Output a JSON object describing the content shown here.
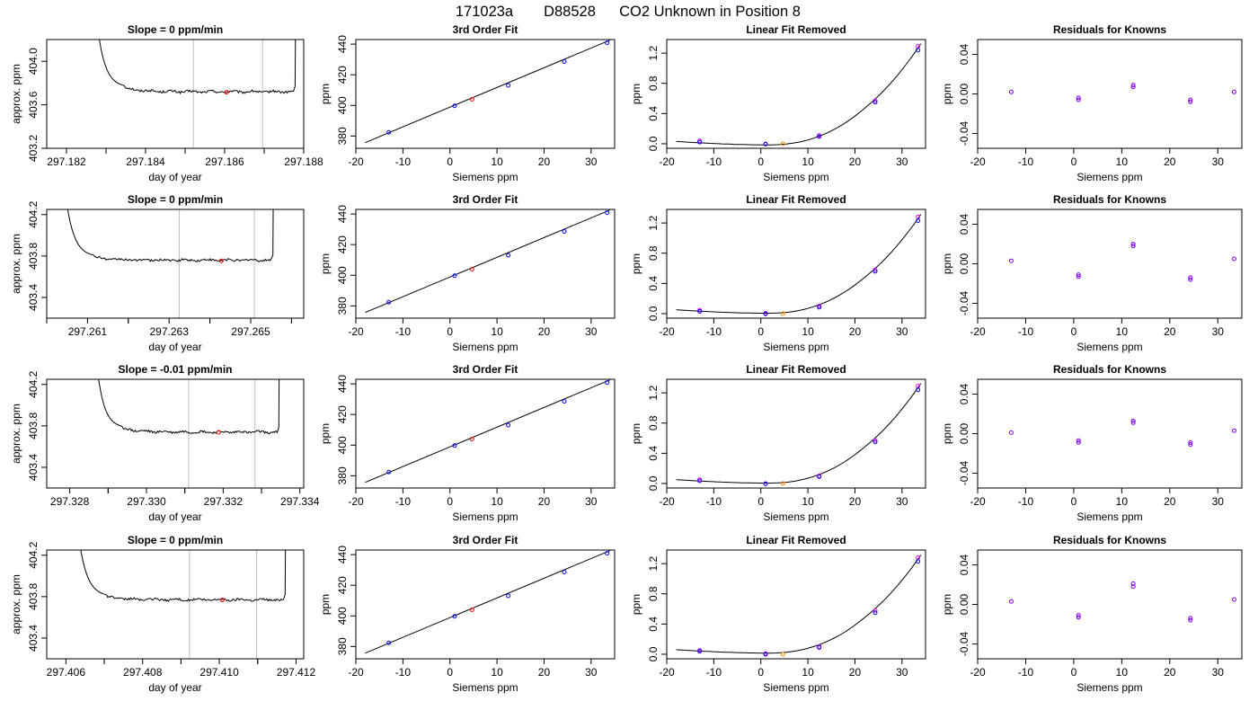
{
  "title": {
    "id": "171023a",
    "tank": "D88528",
    "description": "CO2 Unknown in Position  8"
  },
  "colors": {
    "trace": "#000000",
    "known": "#0000ff",
    "known_alt": "#ff00ff",
    "unknown_fit": "#ff0000",
    "unknown_removed": "#ff8c00",
    "residual": "#8000ff",
    "guide": "#bebebe"
  },
  "chart_data": [
    {
      "type": "line",
      "row": 0,
      "panel": "trace",
      "title": "Slope =  0  ppm/min",
      "xlabel": "day of year",
      "ylabel": "approx. ppm",
      "xlim": [
        297.1815,
        297.188
      ],
      "ylim": [
        403.2,
        404.2
      ],
      "xticks": [
        "297.182",
        "297.184",
        "297.186",
        "297.188"
      ],
      "yticks": [
        "403.2",
        "403.6",
        "404.0"
      ],
      "vlines": [
        297.18521,
        297.18696
      ],
      "marker": {
        "x": 297.18605,
        "y": 403.716
      },
      "trace": {
        "t0": 297.18346,
        "t1": 297.18774,
        "level": 403.72,
        "rise_top": 404.9,
        "settle": 403.76
      }
    },
    {
      "type": "scatter",
      "row": 0,
      "panel": "fit",
      "title": "3rd Order Fit",
      "xlabel": "Siemens ppm",
      "ylabel": "ppm",
      "xlim": [
        -20,
        35
      ],
      "ylim": [
        372,
        443
      ],
      "xticks": [
        "-20",
        "-10",
        "0",
        "10",
        "20",
        "30"
      ],
      "yticks": [
        "380",
        "400",
        "420",
        "440"
      ],
      "fit_line": [
        [
          -18,
          375.7
        ],
        [
          34,
          442.6
        ]
      ],
      "knowns": [
        [
          -13.0,
          382.4
        ],
        [
          1.0,
          399.7
        ],
        [
          12.4,
          413.1
        ],
        [
          24.3,
          428.6
        ],
        [
          33.4,
          440.9
        ]
      ],
      "unknown": [
        4.7,
        404.0
      ]
    },
    {
      "type": "scatter",
      "row": 0,
      "panel": "removed",
      "title": "Linear Fit Removed",
      "xlabel": "Siemens ppm",
      "ylabel": "ppm",
      "xlim": [
        -20,
        35
      ],
      "ylim": [
        -0.06,
        1.38
      ],
      "xticks": [
        "-20",
        "-10",
        "0",
        "10",
        "20",
        "30"
      ],
      "yticks": [
        "0.0",
        "0.4",
        "0.8",
        "1.2"
      ],
      "curve": {
        "y0": 0.03,
        "y1": 1.25
      },
      "knowns": [
        [
          -13.0,
          0.022
        ],
        [
          1.0,
          -0.005
        ],
        [
          12.4,
          0.095
        ],
        [
          24.3,
          0.55
        ],
        [
          33.4,
          1.24
        ]
      ],
      "knowns_alt": [
        [
          -13.0,
          0.04
        ],
        [
          1.0,
          0.0
        ],
        [
          12.4,
          0.11
        ],
        [
          24.3,
          0.57
        ],
        [
          33.4,
          1.29
        ]
      ],
      "unknown": [
        4.7,
        0.0
      ]
    },
    {
      "type": "scatter",
      "row": 0,
      "panel": "residuals",
      "title": "Residuals for Knowns",
      "xlabel": "Siemens ppm",
      "ylabel": "ppm",
      "xlim": [
        -20,
        35
      ],
      "ylim": [
        -0.055,
        0.055
      ],
      "xticks": [
        "-20",
        "-10",
        "0",
        "10",
        "20",
        "30"
      ],
      "yticks": [
        "-0.04",
        "0.00",
        "0.04"
      ],
      "points": [
        [
          -13.0,
          0.002
        ],
        [
          1.0,
          -0.004
        ],
        [
          1.0,
          -0.006
        ],
        [
          12.4,
          0.009
        ],
        [
          12.4,
          0.007
        ],
        [
          24.3,
          -0.006
        ],
        [
          24.3,
          -0.008
        ],
        [
          33.4,
          0.002
        ]
      ]
    },
    {
      "type": "line",
      "row": 1,
      "panel": "trace",
      "title": "Slope =  0  ppm/min",
      "xlabel": "day of year",
      "ylabel": "approx. ppm",
      "xlim": [
        297.26,
        297.2663
      ],
      "ylim": [
        403.2,
        404.25
      ],
      "xticks": [
        "297.261",
        "297.263",
        "297.265"
      ],
      "yticks": [
        "403.4",
        "403.8",
        "404.2"
      ],
      "vlines": [
        297.26325,
        297.26509
      ],
      "marker": {
        "x": 297.26428,
        "y": 403.753
      },
      "trace": {
        "t0": 297.26115,
        "t1": 297.2655,
        "level": 403.76,
        "rise_top": 405.0,
        "settle": 403.79
      }
    },
    {
      "type": "scatter",
      "row": 1,
      "panel": "fit",
      "title": "3rd Order Fit",
      "xlabel": "Siemens ppm",
      "ylabel": "ppm",
      "xlim": [
        -20,
        35
      ],
      "ylim": [
        372,
        443
      ],
      "xticks": [
        "-20",
        "-10",
        "0",
        "10",
        "20",
        "30"
      ],
      "yticks": [
        "380",
        "400",
        "420",
        "440"
      ],
      "fit_line": [
        [
          -18,
          375.7
        ],
        [
          34,
          442.6
        ]
      ],
      "knowns": [
        [
          -13.0,
          382.4
        ],
        [
          1.0,
          399.7
        ],
        [
          12.4,
          413.1
        ],
        [
          24.3,
          428.6
        ],
        [
          33.4,
          440.9
        ]
      ],
      "unknown": [
        4.7,
        404.0
      ]
    },
    {
      "type": "scatter",
      "row": 1,
      "panel": "removed",
      "title": "Linear Fit Removed",
      "xlabel": "Siemens ppm",
      "ylabel": "ppm",
      "xlim": [
        -20,
        35
      ],
      "ylim": [
        -0.06,
        1.38
      ],
      "xticks": [
        "-20",
        "-10",
        "0",
        "10",
        "20",
        "30"
      ],
      "yticks": [
        "0.0",
        "0.4",
        "0.8",
        "1.2"
      ],
      "curve": {
        "y0": 0.05,
        "y1": 1.24
      },
      "knowns": [
        [
          -13.0,
          0.03
        ],
        [
          1.0,
          -0.003
        ],
        [
          12.4,
          0.085
        ],
        [
          24.3,
          0.56
        ],
        [
          33.4,
          1.23
        ]
      ],
      "knowns_alt": [
        [
          -13.0,
          0.045
        ],
        [
          1.0,
          0.005
        ],
        [
          12.4,
          0.1
        ],
        [
          24.3,
          0.58
        ],
        [
          33.4,
          1.28
        ]
      ],
      "unknown": [
        4.7,
        0.0
      ]
    },
    {
      "type": "scatter",
      "row": 1,
      "panel": "residuals",
      "title": "Residuals for Knowns",
      "xlabel": "Siemens ppm",
      "ylabel": "ppm",
      "xlim": [
        -20,
        35
      ],
      "ylim": [
        -0.055,
        0.055
      ],
      "xticks": [
        "-20",
        "-10",
        "0",
        "10",
        "20",
        "30"
      ],
      "yticks": [
        "-0.04",
        "0.00",
        "0.04"
      ],
      "points": [
        [
          -13.0,
          0.003
        ],
        [
          1.0,
          -0.011
        ],
        [
          1.0,
          -0.013
        ],
        [
          12.4,
          0.02
        ],
        [
          12.4,
          0.018
        ],
        [
          24.3,
          -0.014
        ],
        [
          24.3,
          -0.016
        ],
        [
          33.4,
          0.005
        ]
      ]
    },
    {
      "type": "line",
      "row": 2,
      "panel": "trace",
      "title": "Slope =  -0.01  ppm/min",
      "xlabel": "day of year",
      "ylabel": "approx. ppm",
      "xlim": [
        297.3274,
        297.3341
      ],
      "ylim": [
        403.2,
        404.25
      ],
      "xticks": [
        "297.328",
        "297.330",
        "297.332",
        "297.334"
      ],
      "yticks": [
        "403.4",
        "403.8",
        "404.2"
      ],
      "vlines": [
        297.3311,
        297.33283
      ],
      "marker": {
        "x": 297.33188,
        "y": 403.737
      },
      "trace": {
        "t0": 297.32935,
        "t1": 297.33341,
        "level": 403.74,
        "rise_top": 405.0,
        "settle": 403.78
      }
    },
    {
      "type": "scatter",
      "row": 2,
      "panel": "fit",
      "title": "3rd Order Fit",
      "xlabel": "Siemens ppm",
      "ylabel": "ppm",
      "xlim": [
        -20,
        35
      ],
      "ylim": [
        372,
        443
      ],
      "xticks": [
        "-20",
        "-10",
        "0",
        "10",
        "20",
        "30"
      ],
      "yticks": [
        "380",
        "400",
        "420",
        "440"
      ],
      "fit_line": [
        [
          -18,
          375.7
        ],
        [
          34,
          442.6
        ]
      ],
      "knowns": [
        [
          -13.0,
          382.4
        ],
        [
          1.0,
          399.7
        ],
        [
          12.4,
          413.1
        ],
        [
          24.3,
          428.6
        ],
        [
          33.4,
          440.9
        ]
      ],
      "unknown": [
        4.7,
        404.0
      ]
    },
    {
      "type": "scatter",
      "row": 2,
      "panel": "removed",
      "title": "Linear Fit Removed",
      "xlabel": "Siemens ppm",
      "ylabel": "ppm",
      "xlim": [
        -20,
        35
      ],
      "ylim": [
        -0.06,
        1.38
      ],
      "xticks": [
        "-20",
        "-10",
        "0",
        "10",
        "20",
        "30"
      ],
      "yticks": [
        "0.0",
        "0.4",
        "0.8",
        "1.2"
      ],
      "curve": {
        "y0": 0.05,
        "y1": 1.25
      },
      "knowns": [
        [
          -13.0,
          0.035
        ],
        [
          1.0,
          -0.005
        ],
        [
          12.4,
          0.09
        ],
        [
          24.3,
          0.55
        ],
        [
          33.4,
          1.24
        ]
      ],
      "knowns_alt": [
        [
          -13.0,
          0.05
        ],
        [
          1.0,
          0.0
        ],
        [
          12.4,
          0.1
        ],
        [
          24.3,
          0.57
        ],
        [
          33.4,
          1.29
        ]
      ],
      "unknown": [
        4.7,
        0.0
      ]
    },
    {
      "type": "scatter",
      "row": 2,
      "panel": "residuals",
      "title": "Residuals for Knowns",
      "xlabel": "Siemens ppm",
      "ylabel": "ppm",
      "xlim": [
        -20,
        35
      ],
      "ylim": [
        -0.055,
        0.055
      ],
      "xticks": [
        "-20",
        "-10",
        "0",
        "10",
        "20",
        "30"
      ],
      "yticks": [
        "-0.04",
        "0.00",
        "0.04"
      ],
      "points": [
        [
          -13.0,
          0.001
        ],
        [
          1.0,
          -0.007
        ],
        [
          1.0,
          -0.009
        ],
        [
          12.4,
          0.013
        ],
        [
          12.4,
          0.011
        ],
        [
          24.3,
          -0.009
        ],
        [
          24.3,
          -0.011
        ],
        [
          33.4,
          0.003
        ]
      ]
    },
    {
      "type": "line",
      "row": 3,
      "panel": "trace",
      "title": "Slope =  0  ppm/min",
      "xlabel": "day of year",
      "ylabel": "approx. ppm",
      "xlim": [
        297.4055,
        297.4122
      ],
      "ylim": [
        403.2,
        404.25
      ],
      "xticks": [
        "297.406",
        "297.408",
        "297.410",
        "297.412"
      ],
      "yticks": [
        "403.4",
        "403.8",
        "404.2"
      ],
      "vlines": [
        297.40922,
        297.41097
      ],
      "marker": {
        "x": 297.41008,
        "y": 403.768
      },
      "trace": {
        "t0": 297.40706,
        "t1": 297.41167,
        "level": 403.77,
        "rise_top": 405.0,
        "settle": 403.8
      }
    },
    {
      "type": "scatter",
      "row": 3,
      "panel": "fit",
      "title": "3rd Order Fit",
      "xlabel": "Siemens ppm",
      "ylabel": "ppm",
      "xlim": [
        -20,
        35
      ],
      "ylim": [
        372,
        443
      ],
      "xticks": [
        "-20",
        "-10",
        "0",
        "10",
        "20",
        "30"
      ],
      "yticks": [
        "380",
        "400",
        "420",
        "440"
      ],
      "fit_line": [
        [
          -18,
          375.7
        ],
        [
          34,
          442.6
        ]
      ],
      "knowns": [
        [
          -13.0,
          382.4
        ],
        [
          1.0,
          399.7
        ],
        [
          12.4,
          413.1
        ],
        [
          24.3,
          428.6
        ],
        [
          33.4,
          440.9
        ]
      ],
      "unknown": [
        4.7,
        404.0
      ]
    },
    {
      "type": "scatter",
      "row": 3,
      "panel": "removed",
      "title": "Linear Fit Removed",
      "xlabel": "Siemens ppm",
      "ylabel": "ppm",
      "xlim": [
        -20,
        35
      ],
      "ylim": [
        -0.06,
        1.38
      ],
      "xticks": [
        "-20",
        "-10",
        "0",
        "10",
        "20",
        "30"
      ],
      "yticks": [
        "0.0",
        "0.4",
        "0.8",
        "1.2"
      ],
      "curve": {
        "y0": 0.06,
        "y1": 1.24
      },
      "knowns": [
        [
          -13.0,
          0.04
        ],
        [
          1.0,
          0.0
        ],
        [
          12.4,
          0.09
        ],
        [
          24.3,
          0.55
        ],
        [
          33.4,
          1.23
        ]
      ],
      "knowns_alt": [
        [
          -13.0,
          0.05
        ],
        [
          1.0,
          0.01
        ],
        [
          12.4,
          0.1
        ],
        [
          24.3,
          0.58
        ],
        [
          33.4,
          1.28
        ]
      ],
      "unknown": [
        4.7,
        0.0
      ]
    },
    {
      "type": "scatter",
      "row": 3,
      "panel": "residuals",
      "title": "Residuals for Knowns",
      "xlabel": "Siemens ppm",
      "ylabel": "ppm",
      "xlim": [
        -20,
        35
      ],
      "ylim": [
        -0.055,
        0.055
      ],
      "xticks": [
        "-20",
        "-10",
        "0",
        "10",
        "20",
        "30"
      ],
      "yticks": [
        "-0.04",
        "0.00",
        "0.04"
      ],
      "points": [
        [
          -13.0,
          0.003
        ],
        [
          1.0,
          -0.011
        ],
        [
          1.0,
          -0.013
        ],
        [
          12.4,
          0.021
        ],
        [
          12.4,
          0.018
        ],
        [
          24.3,
          -0.014
        ],
        [
          24.3,
          -0.016
        ],
        [
          33.4,
          0.005
        ]
      ]
    }
  ]
}
